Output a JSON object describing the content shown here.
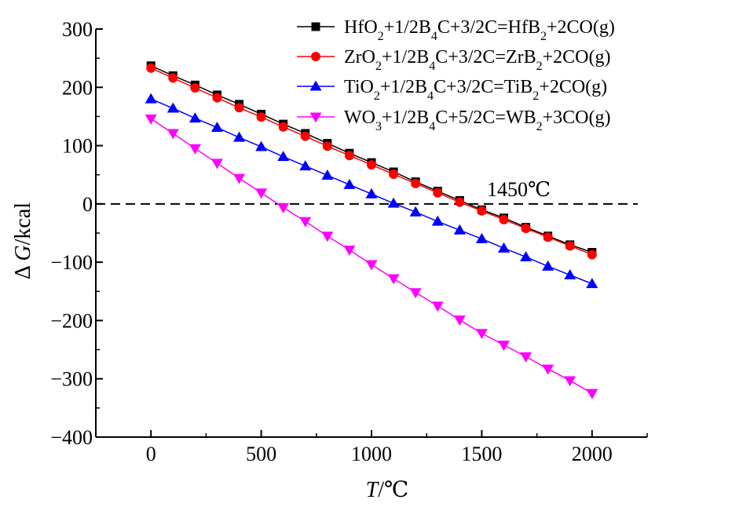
{
  "chart_data": {
    "type": "line",
    "xlabel": "T/℃",
    "ylabel": "Δ G/kcal",
    "xlim": [
      -250,
      2250
    ],
    "ylim": [
      -400,
      300
    ],
    "xticks": [
      0,
      500,
      1000,
      1500,
      2000
    ],
    "yticks": [
      300,
      200,
      100,
      0,
      -100,
      -200,
      -300,
      -400
    ],
    "x": [
      0,
      100,
      200,
      300,
      400,
      500,
      600,
      700,
      800,
      900,
      1000,
      1100,
      1200,
      1300,
      1400,
      1500,
      1600,
      1700,
      1800,
      1900,
      2000
    ],
    "series": [
      {
        "name": "HfO2+1/2B4C+3/2C=HfB2+2CO(g)",
        "color": "#000000",
        "marker": "square",
        "values": [
          237,
          220,
          204,
          187,
          171,
          154,
          137,
          121,
          104,
          87,
          71,
          55,
          38,
          22,
          6,
          -10,
          -24,
          -40,
          -55,
          -70,
          -83
        ]
      },
      {
        "name": "ZrO2+1/2B4C+3/2C=ZrB2+2CO(g)",
        "color": "#ff0000",
        "marker": "circle",
        "values": [
          233,
          216,
          199,
          182,
          165,
          149,
          132,
          116,
          99,
          83,
          67,
          51,
          35,
          19,
          3,
          -12,
          -27,
          -42,
          -57,
          -72,
          -87
        ]
      },
      {
        "name": "TiO2+1/2B4C+3/2C=TiB2+2CO(g)",
        "color": "#0000ff",
        "marker": "triangle-up",
        "values": [
          180,
          164,
          147,
          131,
          114,
          98,
          81,
          65,
          49,
          33,
          17,
          1,
          -14,
          -30,
          -45,
          -60,
          -76,
          -91,
          -107,
          -122,
          -137
        ]
      },
      {
        "name": "WO3+1/2B4C+5/2C=WB2+3CO(g)",
        "color": "#ff00ff",
        "marker": "triangle-down",
        "values": [
          146,
          121,
          95,
          70,
          44,
          19,
          -6,
          -30,
          -55,
          -79,
          -104,
          -128,
          -152,
          -175,
          -199,
          -222,
          -242,
          -262,
          -283,
          -303,
          -325
        ]
      }
    ],
    "reference_line": {
      "y": 0,
      "style": "dashed"
    },
    "annotation": "1450℃",
    "legend_placement": "top-right",
    "grid": false
  }
}
